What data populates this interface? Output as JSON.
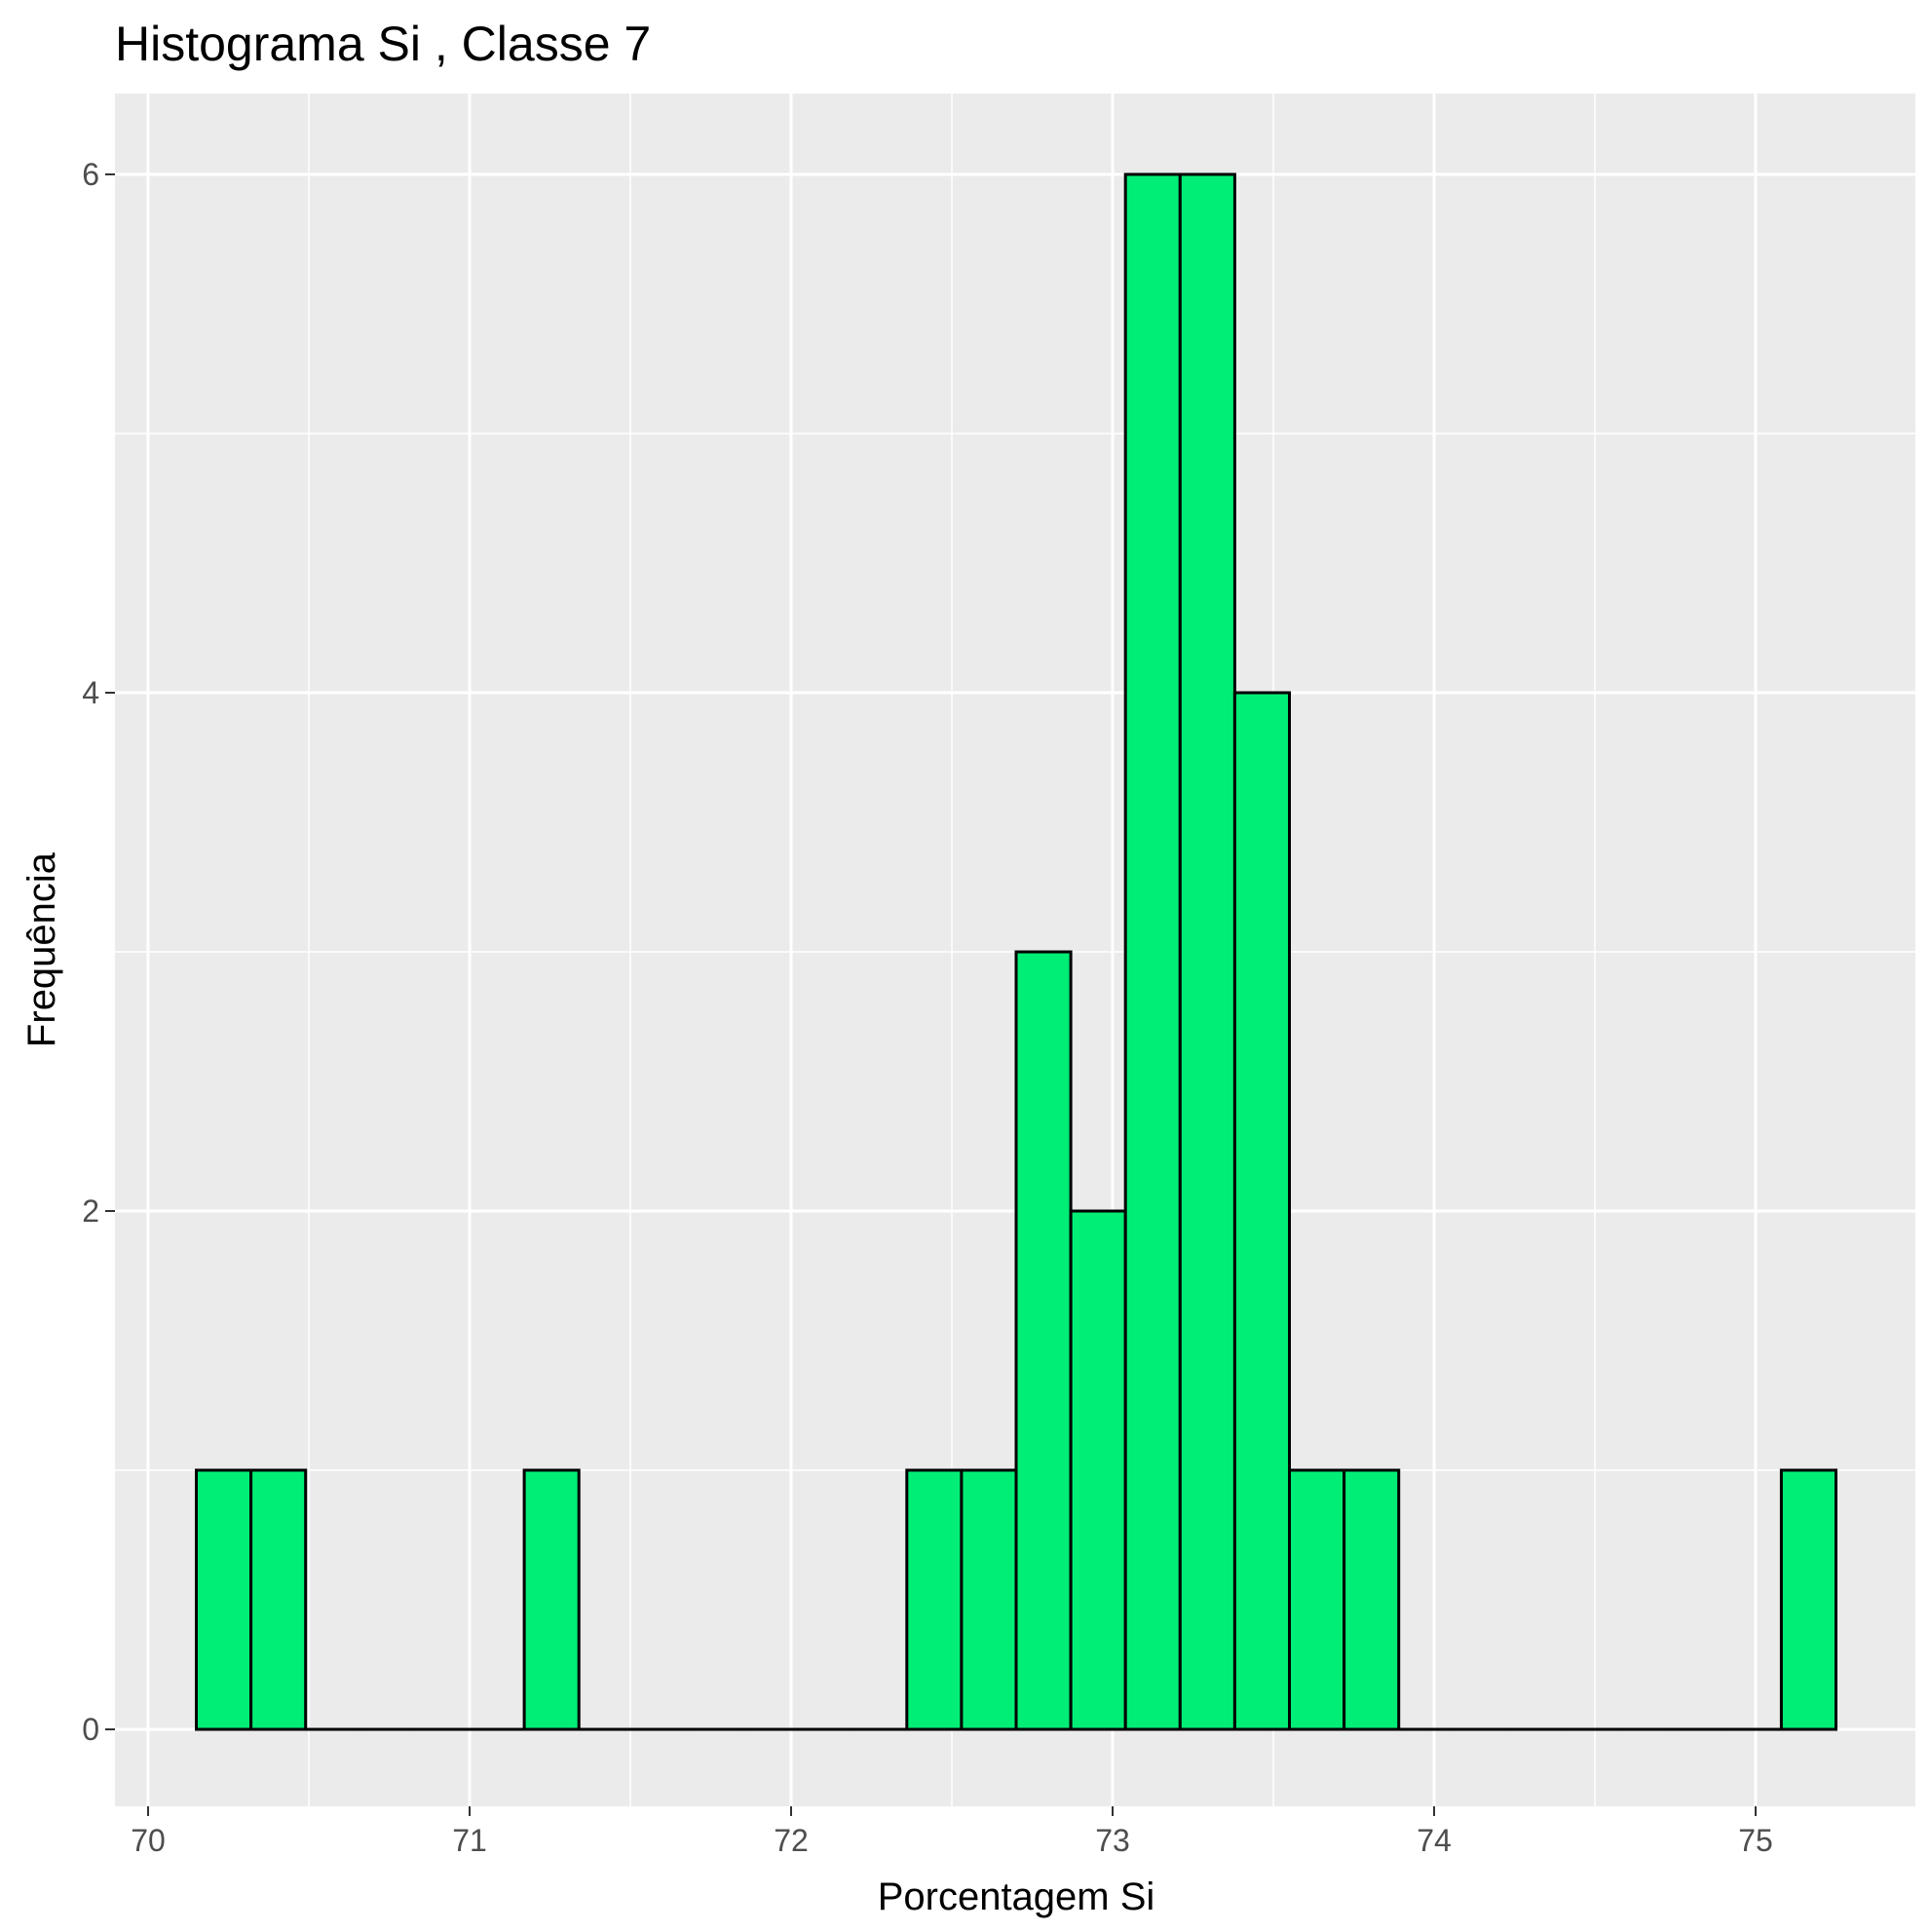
{
  "chart_data": {
    "type": "bar",
    "title": "Histograma  Si , Classe  7",
    "xlabel": "Porcentagem Si",
    "ylabel": "Frequência",
    "xlim": [
      70,
      75.5
    ],
    "ylim": [
      0,
      6
    ],
    "x_ticks": [
      "70",
      "71",
      "72",
      "73",
      "74",
      "75"
    ],
    "y_ticks": [
      "0",
      "2",
      "4",
      "6"
    ],
    "bin_width": 0.17,
    "bins": [
      {
        "start": 70.15,
        "end": 70.32,
        "count": 1
      },
      {
        "start": 70.32,
        "end": 70.49,
        "count": 1
      },
      {
        "start": 70.49,
        "end": 70.66,
        "count": 0
      },
      {
        "start": 70.66,
        "end": 70.83,
        "count": 0
      },
      {
        "start": 70.83,
        "end": 71.0,
        "count": 0
      },
      {
        "start": 71.0,
        "end": 71.17,
        "count": 0
      },
      {
        "start": 71.17,
        "end": 71.34,
        "count": 1
      },
      {
        "start": 71.34,
        "end": 71.51,
        "count": 0
      },
      {
        "start": 71.51,
        "end": 71.68,
        "count": 0
      },
      {
        "start": 71.68,
        "end": 71.85,
        "count": 0
      },
      {
        "start": 71.85,
        "end": 72.02,
        "count": 0
      },
      {
        "start": 72.02,
        "end": 72.19,
        "count": 0
      },
      {
        "start": 72.19,
        "end": 72.36,
        "count": 0
      },
      {
        "start": 72.36,
        "end": 72.53,
        "count": 1
      },
      {
        "start": 72.53,
        "end": 72.7,
        "count": 1
      },
      {
        "start": 72.7,
        "end": 72.87,
        "count": 3
      },
      {
        "start": 72.87,
        "end": 73.04,
        "count": 2
      },
      {
        "start": 73.04,
        "end": 73.21,
        "count": 6
      },
      {
        "start": 73.21,
        "end": 73.38,
        "count": 6
      },
      {
        "start": 73.38,
        "end": 73.55,
        "count": 4
      },
      {
        "start": 73.55,
        "end": 73.72,
        "count": 1
      },
      {
        "start": 73.72,
        "end": 73.89,
        "count": 1
      },
      {
        "start": 73.89,
        "end": 74.06,
        "count": 0
      },
      {
        "start": 74.06,
        "end": 74.23,
        "count": 0
      },
      {
        "start": 74.23,
        "end": 74.4,
        "count": 0
      },
      {
        "start": 74.4,
        "end": 74.57,
        "count": 0
      },
      {
        "start": 74.57,
        "end": 74.74,
        "count": 0
      },
      {
        "start": 74.74,
        "end": 74.91,
        "count": 0
      },
      {
        "start": 74.91,
        "end": 75.08,
        "count": 0
      },
      {
        "start": 75.08,
        "end": 75.25,
        "count": 1
      }
    ],
    "grid": true,
    "legend": "none",
    "colors": {
      "bar_fill": "#00EE76",
      "bar_outline": "#000000",
      "panel_background": "#EBEBEB",
      "grid_line": "#FFFFFF"
    }
  }
}
